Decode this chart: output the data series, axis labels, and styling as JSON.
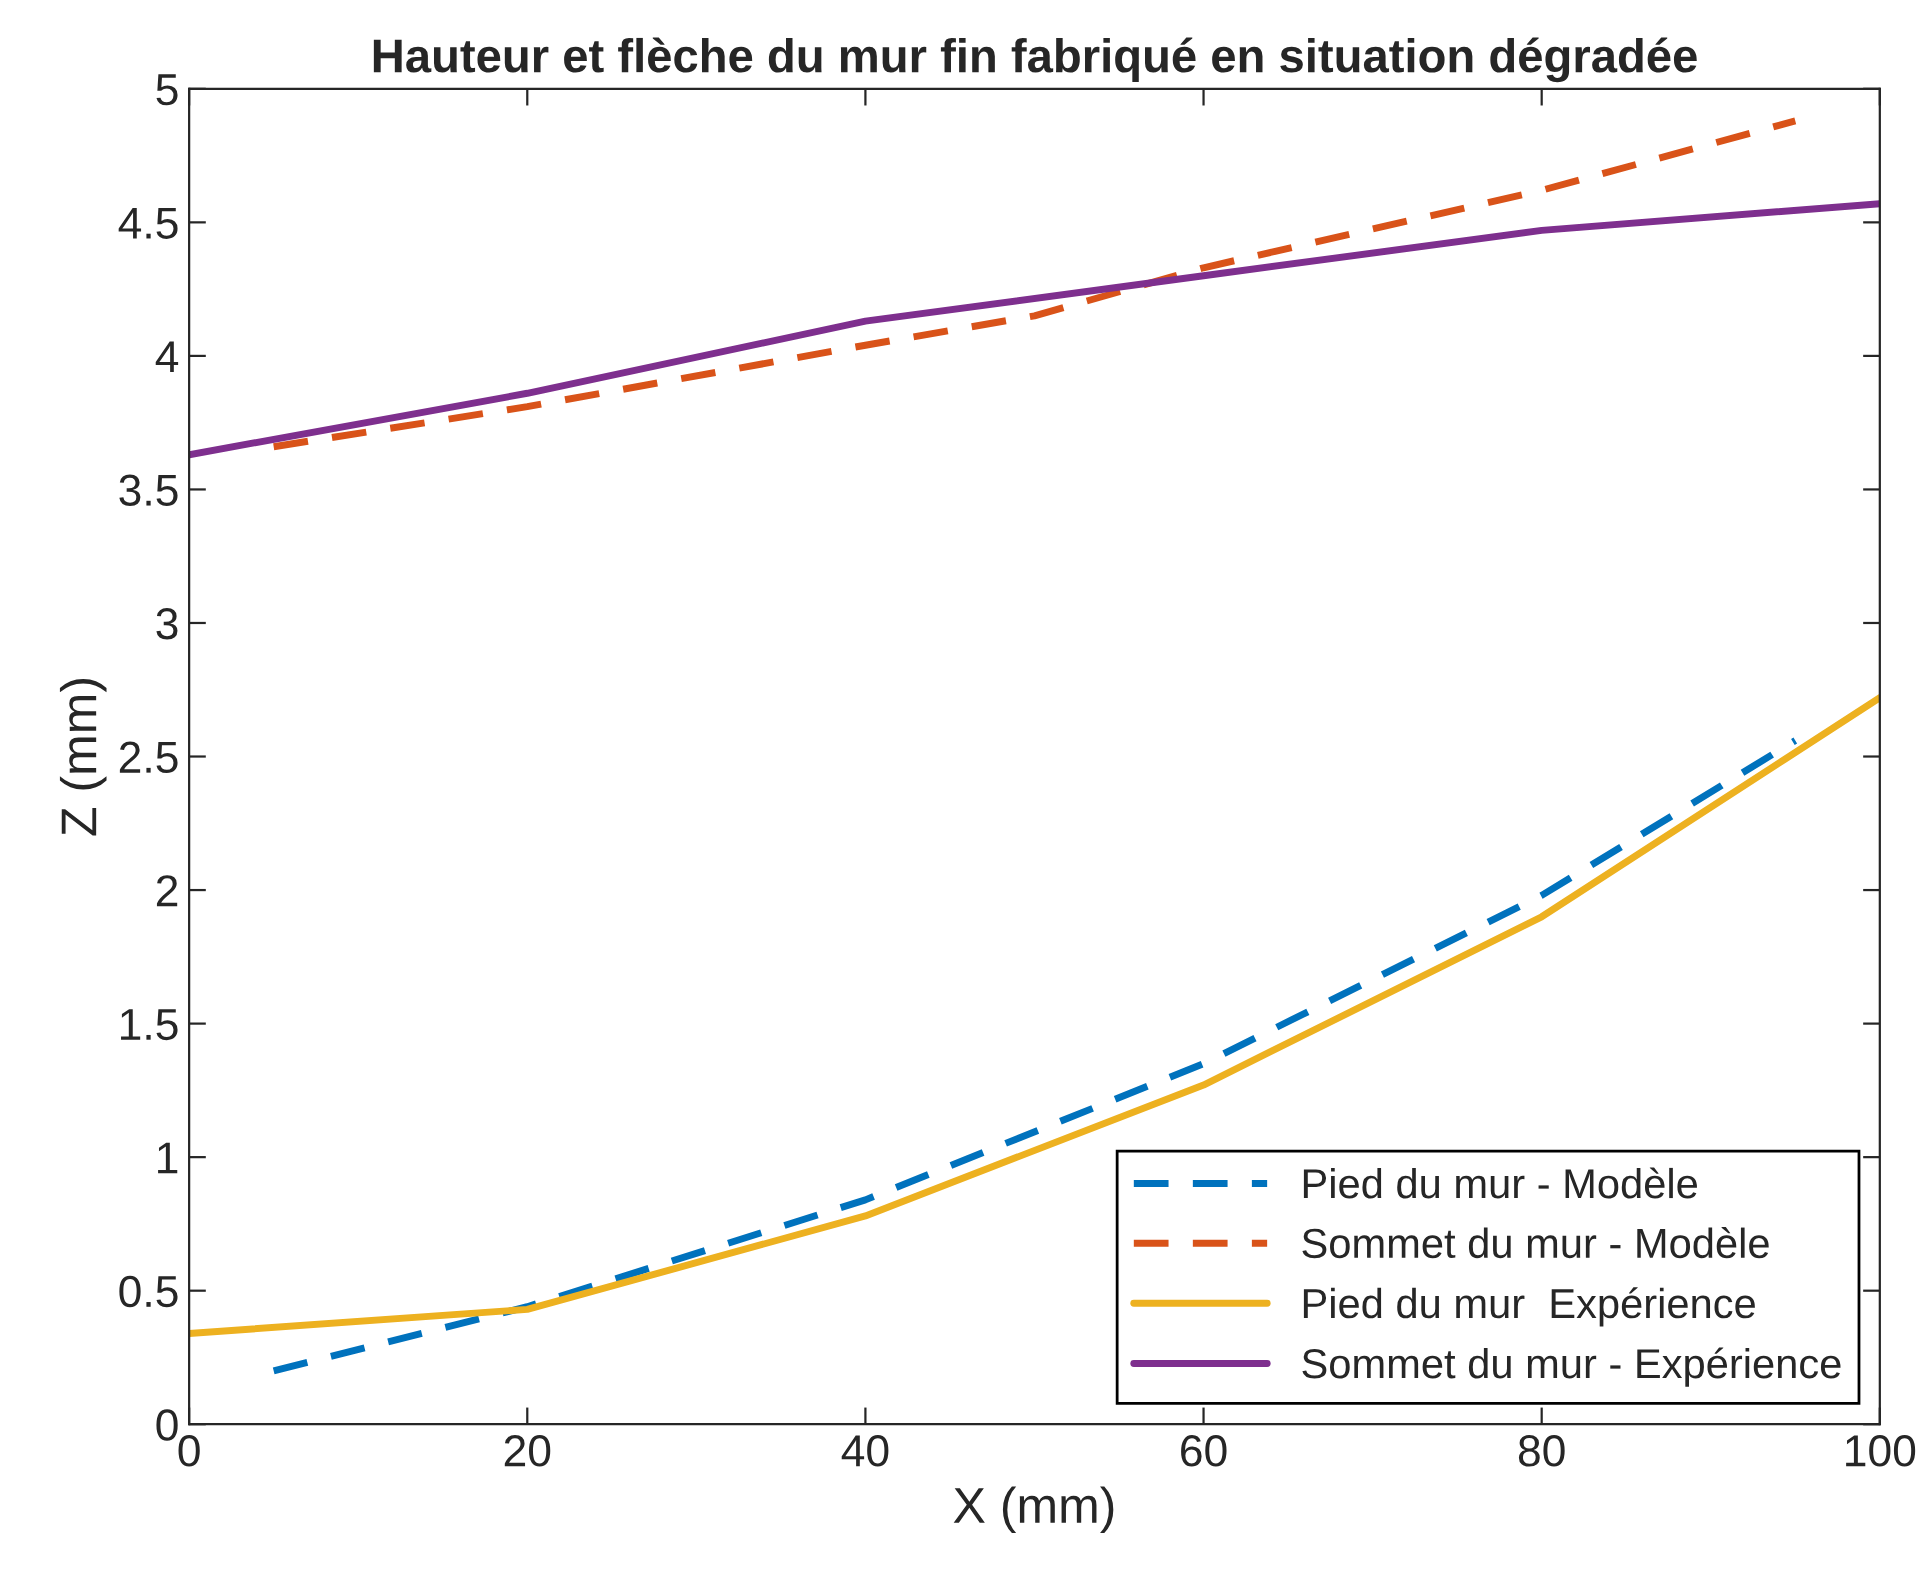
{
  "chart_data": {
    "type": "line",
    "title": "Hauteur et flèche du mur fin fabriqué en situation dégradée",
    "xlabel": "X (mm)",
    "ylabel": "Z (mm)",
    "xlim": [
      0,
      100
    ],
    "xticks": [
      0,
      20,
      40,
      60,
      80,
      100
    ],
    "ylim": [
      0,
      5
    ],
    "yticks": [
      0,
      0.5,
      1,
      1.5,
      2,
      2.5,
      3,
      3.5,
      4,
      4.5,
      5
    ],
    "grid": false,
    "legend": "bottom right",
    "series": [
      {
        "name": "Pied du mur - Modèle",
        "color": "#0072bd",
        "line_style": "dashed",
        "x": [
          5,
          20,
          40,
          60,
          80,
          95
        ],
        "values": [
          0.2,
          0.44,
          0.84,
          1.35,
          1.98,
          2.56
        ]
      },
      {
        "name": "Sommet du mur - Modèle",
        "color": "#d95319",
        "line_style": "dashed",
        "x": [
          5,
          20,
          40,
          50,
          60,
          80,
          95
        ],
        "values": [
          3.66,
          3.81,
          4.04,
          4.15,
          4.33,
          4.62,
          4.88
        ]
      },
      {
        "name": "Pied du mur  Expérience",
        "color": "#edb120",
        "line_style": "solid",
        "x": [
          0,
          20,
          40,
          60,
          80,
          100
        ],
        "values": [
          0.34,
          0.43,
          0.78,
          1.27,
          1.9,
          2.72
        ]
      },
      {
        "name": "Sommet du mur - Expérience",
        "color": "#7e2f8e",
        "line_style": "solid",
        "x": [
          0,
          20,
          40,
          60,
          80,
          100
        ],
        "values": [
          3.63,
          3.86,
          4.13,
          4.3,
          4.47,
          4.57
        ]
      }
    ]
  }
}
